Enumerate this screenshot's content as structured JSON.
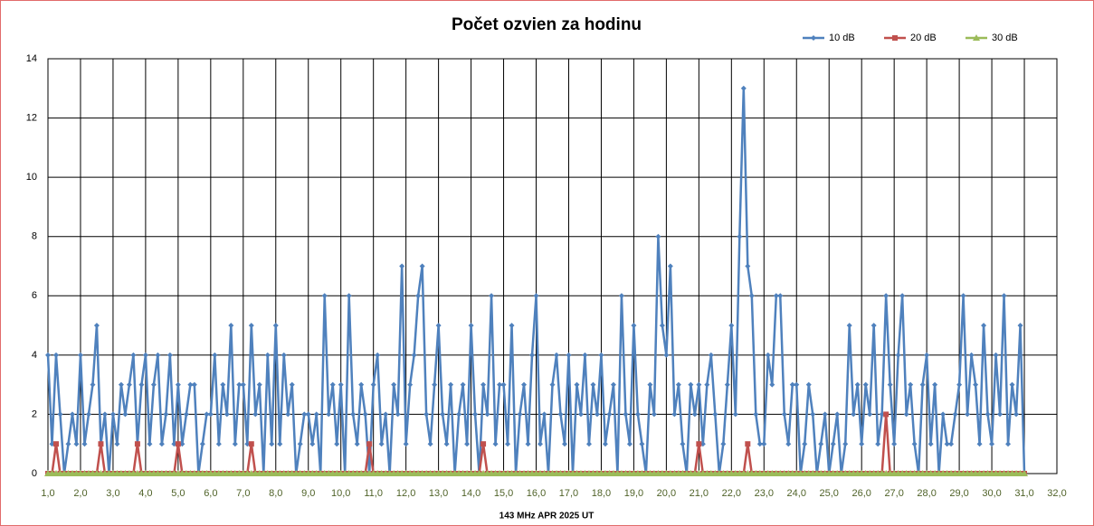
{
  "chart_data": {
    "type": "line",
    "title": "Počet ozvien za hodinu",
    "x_label": "143 MHz APR  2025  UT",
    "legend": "top-right",
    "grid": true,
    "xlim": [
      1,
      32
    ],
    "ylim": [
      0,
      14
    ],
    "xticks": [
      {
        "value": 1,
        "label": "1,0"
      },
      {
        "value": 2,
        "label": "2,0"
      },
      {
        "value": 3,
        "label": "3,0"
      },
      {
        "value": 4,
        "label": "4,0"
      },
      {
        "value": 5,
        "label": "5,0"
      },
      {
        "value": 6,
        "label": "6,0"
      },
      {
        "value": 7,
        "label": "7,0"
      },
      {
        "value": 8,
        "label": "8,0"
      },
      {
        "value": 9,
        "label": "9,0"
      },
      {
        "value": 10,
        "label": "10,0"
      },
      {
        "value": 11,
        "label": "11,0"
      },
      {
        "value": 12,
        "label": "12,0"
      },
      {
        "value": 13,
        "label": "13,0"
      },
      {
        "value": 14,
        "label": "14,0"
      },
      {
        "value": 15,
        "label": "15,0"
      },
      {
        "value": 16,
        "label": "16,0"
      },
      {
        "value": 17,
        "label": "17,0"
      },
      {
        "value": 18,
        "label": "18,0"
      },
      {
        "value": 19,
        "label": "19,0"
      },
      {
        "value": 20,
        "label": "20,0"
      },
      {
        "value": 21,
        "label": "21,0"
      },
      {
        "value": 22,
        "label": "22,0"
      },
      {
        "value": 23,
        "label": "23,0"
      },
      {
        "value": 24,
        "label": "24,0"
      },
      {
        "value": 25,
        "label": "25,0"
      },
      {
        "value": 26,
        "label": "26,0"
      },
      {
        "value": 27,
        "label": "27,0"
      },
      {
        "value": 28,
        "label": "28,0"
      },
      {
        "value": 29,
        "label": "29,0"
      },
      {
        "value": 30,
        "label": "30,0"
      },
      {
        "value": 31,
        "label": "31,0"
      },
      {
        "value": 32,
        "label": "32,0"
      }
    ],
    "yticks": [
      0,
      2,
      4,
      6,
      8,
      10,
      12,
      14
    ],
    "x": [
      1,
      1.125,
      1.25,
      1.375,
      1.5,
      1.625,
      1.75,
      1.875,
      2,
      2.125,
      2.25,
      2.375,
      2.5,
      2.625,
      2.75,
      2.875,
      3,
      3.125,
      3.25,
      3.375,
      3.5,
      3.625,
      3.75,
      3.875,
      4,
      4.125,
      4.25,
      4.375,
      4.5,
      4.625,
      4.75,
      4.875,
      5,
      5.125,
      5.25,
      5.375,
      5.5,
      5.625,
      5.75,
      5.875,
      6,
      6.125,
      6.25,
      6.375,
      6.5,
      6.625,
      6.75,
      6.875,
      7,
      7.125,
      7.25,
      7.375,
      7.5,
      7.625,
      7.75,
      7.875,
      8,
      8.125,
      8.25,
      8.375,
      8.5,
      8.625,
      8.75,
      8.875,
      9,
      9.125,
      9.25,
      9.375,
      9.5,
      9.625,
      9.75,
      9.875,
      10,
      10.125,
      10.25,
      10.375,
      10.5,
      10.625,
      10.75,
      10.875,
      11,
      11.125,
      11.25,
      11.375,
      11.5,
      11.625,
      11.75,
      11.875,
      12,
      12.125,
      12.25,
      12.375,
      12.5,
      12.625,
      12.75,
      12.875,
      13,
      13.125,
      13.25,
      13.375,
      13.5,
      13.625,
      13.75,
      13.875,
      14,
      14.125,
      14.25,
      14.375,
      14.5,
      14.625,
      14.75,
      14.875,
      15,
      15.125,
      15.25,
      15.375,
      15.5,
      15.625,
      15.75,
      15.875,
      16,
      16.125,
      16.25,
      16.375,
      16.5,
      16.625,
      16.75,
      16.875,
      17,
      17.125,
      17.25,
      17.375,
      17.5,
      17.625,
      17.75,
      17.875,
      18,
      18.125,
      18.25,
      18.375,
      18.5,
      18.625,
      18.75,
      18.875,
      19,
      19.125,
      19.25,
      19.375,
      19.5,
      19.625,
      19.75,
      19.875,
      20,
      20.125,
      20.25,
      20.375,
      20.5,
      20.625,
      20.75,
      20.875,
      21,
      21.125,
      21.25,
      21.375,
      21.5,
      21.625,
      21.75,
      21.875,
      22,
      22.125,
      22.25,
      22.375,
      22.5,
      22.625,
      22.75,
      22.875,
      23,
      23.125,
      23.25,
      23.375,
      23.5,
      23.625,
      23.75,
      23.875,
      24,
      24.125,
      24.25,
      24.375,
      24.5,
      24.625,
      24.75,
      24.875,
      25,
      25.125,
      25.25,
      25.375,
      25.5,
      25.625,
      25.75,
      25.875,
      26,
      26.125,
      26.25,
      26.375,
      26.5,
      26.625,
      26.75,
      26.875,
      27,
      27.125,
      27.25,
      27.375,
      27.5,
      27.625,
      27.75,
      27.875,
      28,
      28.125,
      28.25,
      28.375,
      28.5,
      28.625,
      28.75,
      28.875,
      29,
      29.125,
      29.25,
      29.375,
      29.5,
      29.625,
      29.75,
      29.875,
      30,
      30.125,
      30.25,
      30.375,
      30.5,
      30.625,
      30.75,
      30.875,
      31
    ],
    "series": [
      {
        "name": "10 dB",
        "color": "#4f81bd",
        "marker": "diamond",
        "values": [
          4,
          1,
          4,
          2,
          0,
          1,
          2,
          1,
          4,
          1,
          2,
          3,
          5,
          1,
          2,
          0,
          2,
          1,
          3,
          2,
          3,
          4,
          1,
          3,
          4,
          1,
          3,
          4,
          1,
          2,
          4,
          1,
          3,
          1,
          2,
          3,
          3,
          0,
          1,
          2,
          2,
          4,
          1,
          3,
          2,
          5,
          1,
          3,
          3,
          1,
          5,
          2,
          3,
          0,
          4,
          1,
          5,
          1,
          4,
          2,
          3,
          0,
          1,
          2,
          2,
          1,
          2,
          0,
          6,
          2,
          3,
          1,
          3,
          0,
          6,
          2,
          1,
          3,
          2,
          0,
          3,
          4,
          1,
          2,
          0,
          3,
          2,
          7,
          1,
          3,
          4,
          6,
          7,
          2,
          1,
          3,
          5,
          2,
          1,
          3,
          0,
          2,
          3,
          1,
          5,
          2,
          0,
          3,
          2,
          6,
          1,
          3,
          3,
          1,
          5,
          0,
          2,
          3,
          1,
          4,
          6,
          1,
          2,
          0,
          3,
          4,
          2,
          1,
          4,
          0,
          3,
          2,
          4,
          1,
          3,
          2,
          4,
          1,
          2,
          3,
          0,
          6,
          2,
          1,
          5,
          2,
          1,
          0,
          3,
          2,
          8,
          5,
          4,
          7,
          2,
          3,
          1,
          0,
          3,
          2,
          3,
          1,
          3,
          4,
          2,
          0,
          1,
          3,
          5,
          2,
          8,
          13,
          7,
          6,
          2,
          1,
          1,
          4,
          3,
          6,
          6,
          2,
          1,
          3,
          3,
          0,
          1,
          3,
          2,
          0,
          1,
          2,
          0,
          1,
          2,
          0,
          1,
          5,
          2,
          3,
          1,
          3,
          2,
          5,
          1,
          2,
          6,
          3,
          1,
          4,
          6,
          2,
          3,
          1,
          0,
          3,
          4,
          1,
          3,
          0,
          2,
          1,
          1,
          2,
          3,
          6,
          2,
          4,
          3,
          1,
          5,
          2,
          1,
          4,
          2,
          6,
          1,
          3,
          2,
          5,
          0
        ]
      },
      {
        "name": "20 dB",
        "color": "#c0504d",
        "marker": "square",
        "values": [
          0,
          0,
          1,
          0,
          0,
          0,
          0,
          0,
          0,
          0,
          0,
          0,
          0,
          1,
          0,
          0,
          0,
          0,
          0,
          0,
          0,
          0,
          1,
          0,
          0,
          0,
          0,
          0,
          0,
          0,
          0,
          0,
          1,
          0,
          0,
          0,
          0,
          0,
          0,
          0,
          0,
          0,
          0,
          0,
          0,
          0,
          0,
          0,
          0,
          0,
          1,
          0,
          0,
          0,
          0,
          0,
          0,
          0,
          0,
          0,
          0,
          0,
          0,
          0,
          0,
          0,
          0,
          0,
          0,
          0,
          0,
          0,
          0,
          0,
          0,
          0,
          0,
          0,
          0,
          1,
          0,
          0,
          0,
          0,
          0,
          0,
          0,
          0,
          0,
          0,
          0,
          0,
          0,
          0,
          0,
          0,
          0,
          0,
          0,
          0,
          0,
          0,
          0,
          0,
          0,
          0,
          0,
          1,
          0,
          0,
          0,
          0,
          0,
          0,
          0,
          0,
          0,
          0,
          0,
          0,
          0,
          0,
          0,
          0,
          0,
          0,
          0,
          0,
          0,
          0,
          0,
          0,
          0,
          0,
          0,
          0,
          0,
          0,
          0,
          0,
          0,
          0,
          0,
          0,
          0,
          0,
          0,
          0,
          0,
          0,
          0,
          0,
          0,
          0,
          0,
          0,
          0,
          0,
          0,
          0,
          1,
          0,
          0,
          0,
          0,
          0,
          0,
          0,
          0,
          0,
          0,
          0,
          1,
          0,
          0,
          0,
          0,
          0,
          0,
          0,
          0,
          0,
          0,
          0,
          0,
          0,
          0,
          0,
          0,
          0,
          0,
          0,
          0,
          0,
          0,
          0,
          0,
          0,
          0,
          0,
          0,
          0,
          0,
          0,
          0,
          0,
          2,
          0,
          0,
          0,
          0,
          0,
          0,
          0,
          0,
          0,
          0,
          0,
          0,
          0,
          0,
          0,
          0,
          0,
          0,
          0,
          0,
          0,
          0,
          0,
          0,
          0,
          0,
          0,
          0,
          0,
          0,
          0,
          0,
          0,
          0
        ]
      },
      {
        "name": "30 dB",
        "color": "#9bbb59",
        "marker": "triangle",
        "values": [
          0,
          0,
          0,
          0,
          0,
          0,
          0,
          0,
          0,
          0,
          0,
          0,
          0,
          0,
          0,
          0,
          0,
          0,
          0,
          0,
          0,
          0,
          0,
          0,
          0,
          0,
          0,
          0,
          0,
          0,
          0,
          0,
          0,
          0,
          0,
          0,
          0,
          0,
          0,
          0,
          0,
          0,
          0,
          0,
          0,
          0,
          0,
          0,
          0,
          0,
          0,
          0,
          0,
          0,
          0,
          0,
          0,
          0,
          0,
          0,
          0,
          0,
          0,
          0,
          0,
          0,
          0,
          0,
          0,
          0,
          0,
          0,
          0,
          0,
          0,
          0,
          0,
          0,
          0,
          0,
          0,
          0,
          0,
          0,
          0,
          0,
          0,
          0,
          0,
          0,
          0,
          0,
          0,
          0,
          0,
          0,
          0,
          0,
          0,
          0,
          0,
          0,
          0,
          0,
          0,
          0,
          0,
          0,
          0,
          0,
          0,
          0,
          0,
          0,
          0,
          0,
          0,
          0,
          0,
          0,
          0,
          0,
          0,
          0,
          0,
          0,
          0,
          0,
          0,
          0,
          0,
          0,
          0,
          0,
          0,
          0,
          0,
          0,
          0,
          0,
          0,
          0,
          0,
          0,
          0,
          0,
          0,
          0,
          0,
          0,
          0,
          0,
          0,
          0,
          0,
          0,
          0,
          0,
          0,
          0,
          0,
          0,
          0,
          0,
          0,
          0,
          0,
          0,
          0,
          0,
          0,
          0,
          0,
          0,
          0,
          0,
          0,
          0,
          0,
          0,
          0,
          0,
          0,
          0,
          0,
          0,
          0,
          0,
          0,
          0,
          0,
          0,
          0,
          0,
          0,
          0,
          0,
          0,
          0,
          0,
          0,
          0,
          0,
          0,
          0,
          0,
          0,
          0,
          0,
          0,
          0,
          0,
          0,
          0,
          0,
          0,
          0,
          0,
          0,
          0,
          0,
          0,
          0,
          0,
          0,
          0,
          0,
          0,
          0,
          0,
          0,
          0,
          0,
          0,
          0,
          0,
          0,
          0,
          0,
          0,
          0
        ]
      }
    ]
  }
}
